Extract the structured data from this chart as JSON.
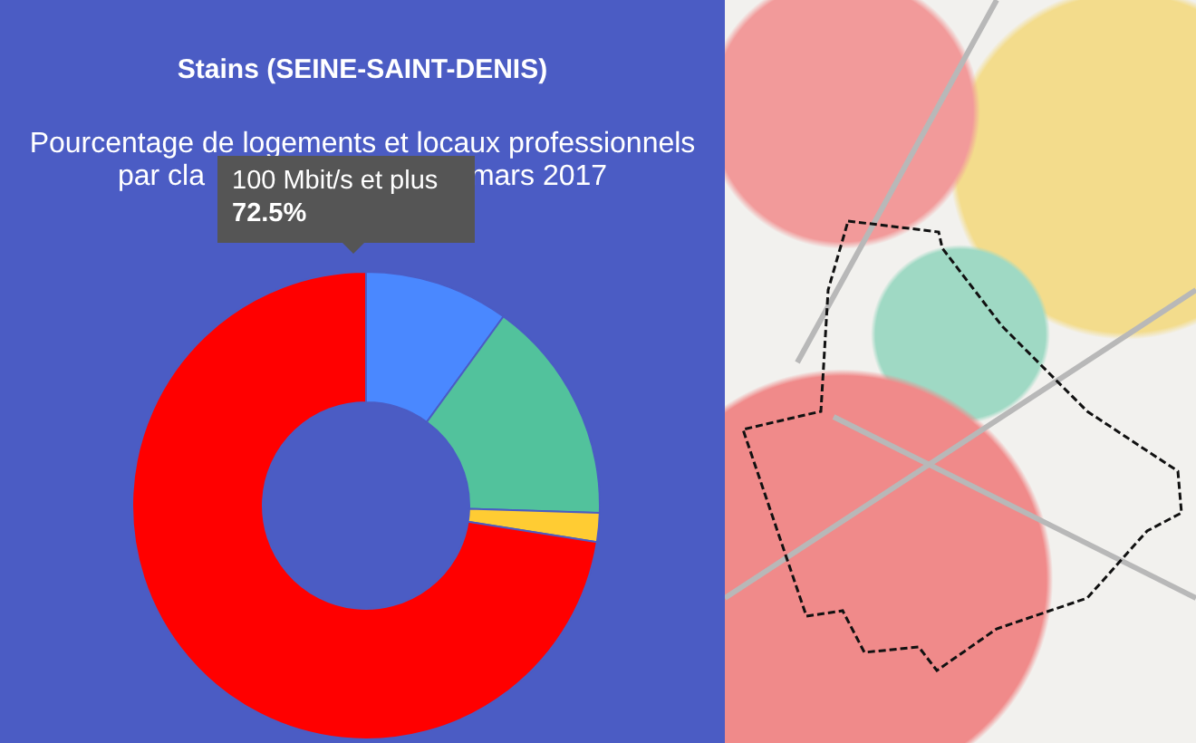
{
  "chart_data": {
    "type": "donut",
    "title": "Stains (SEINE-SAINT-DENIS)",
    "subtitle": "Pourcentage de logements et locaux professionnels",
    "annotations": [
      "par cla",
      "mars 2017"
    ],
    "categories": [
      null,
      null,
      null,
      "100 Mbit/s et plus"
    ],
    "values": [
      10,
      15.5,
      2,
      72.5
    ],
    "colors": [
      "#4a88ff",
      "#52c29c",
      "#ffcc33",
      "#ff0000"
    ],
    "value_labels": [
      null,
      null,
      null,
      "72.5%"
    ]
  }
}
